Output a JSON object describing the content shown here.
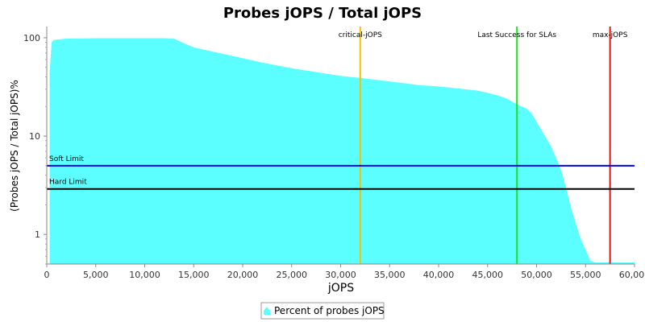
{
  "chart_data": {
    "type": "area",
    "title": "Probes jOPS / Total jOPS",
    "xlabel": "jOPS",
    "ylabel": "(Probes jOPS / Total jOPS)%",
    "xlim": [
      0,
      60000
    ],
    "ylim": [
      0.5,
      130
    ],
    "y_scale": "log",
    "x_ticks": [
      0,
      5000,
      10000,
      15000,
      20000,
      25000,
      30000,
      35000,
      40000,
      45000,
      50000,
      55000,
      60000
    ],
    "x_tick_labels": [
      "0",
      "5,000",
      "10,000",
      "15,000",
      "20,000",
      "25,000",
      "30,000",
      "35,000",
      "40,000",
      "45,000",
      "50,000",
      "55,000",
      "60,000"
    ],
    "y_ticks": [
      1,
      10,
      100
    ],
    "y_tick_labels": [
      "1",
      "10",
      "100"
    ],
    "series": [
      {
        "name": "Percent of probes jOPS",
        "color": "#5cffff",
        "x": [
          300,
          500,
          700,
          2000,
          5000,
          8000,
          10000,
          12000,
          13000,
          14000,
          15000,
          17000,
          20000,
          22000,
          25000,
          28000,
          30000,
          32000,
          35000,
          38000,
          40000,
          42000,
          44000,
          45000,
          46000,
          47000,
          48000,
          49000,
          49500,
          50000,
          50500,
          51000,
          51500,
          52000,
          52500,
          53000,
          53500,
          54000,
          54500,
          55000,
          55500,
          56000,
          58000,
          60000
        ],
        "y": [
          45,
          90,
          95,
          98,
          99,
          99,
          99,
          99,
          98,
          88,
          80,
          72,
          62,
          56,
          49,
          44,
          41,
          39,
          36,
          33,
          32,
          30.5,
          29,
          27.5,
          26,
          24,
          21,
          19,
          17,
          14,
          11.5,
          9.5,
          7.8,
          6,
          4.5,
          3,
          1.9,
          1.3,
          0.9,
          0.7,
          0.54,
          0.52,
          0.52,
          0.52
        ]
      }
    ],
    "reference_lines": [
      {
        "orientation": "vertical",
        "value": 32000,
        "label": "critical-jOPS",
        "color": "#f5c000"
      },
      {
        "orientation": "vertical",
        "value": 48000,
        "label": "Last Success for SLAs",
        "color": "#22dd22"
      },
      {
        "orientation": "vertical",
        "value": 57500,
        "label": "max-jOPS",
        "color": "#ee1111"
      },
      {
        "orientation": "horizontal",
        "value": 5,
        "label": "Soft Limit",
        "color": "#0000ee"
      },
      {
        "orientation": "horizontal",
        "value": 2.9,
        "label": "Hard Limit",
        "color": "#000000"
      }
    ],
    "grid": false,
    "legend_position": "bottom-center"
  }
}
